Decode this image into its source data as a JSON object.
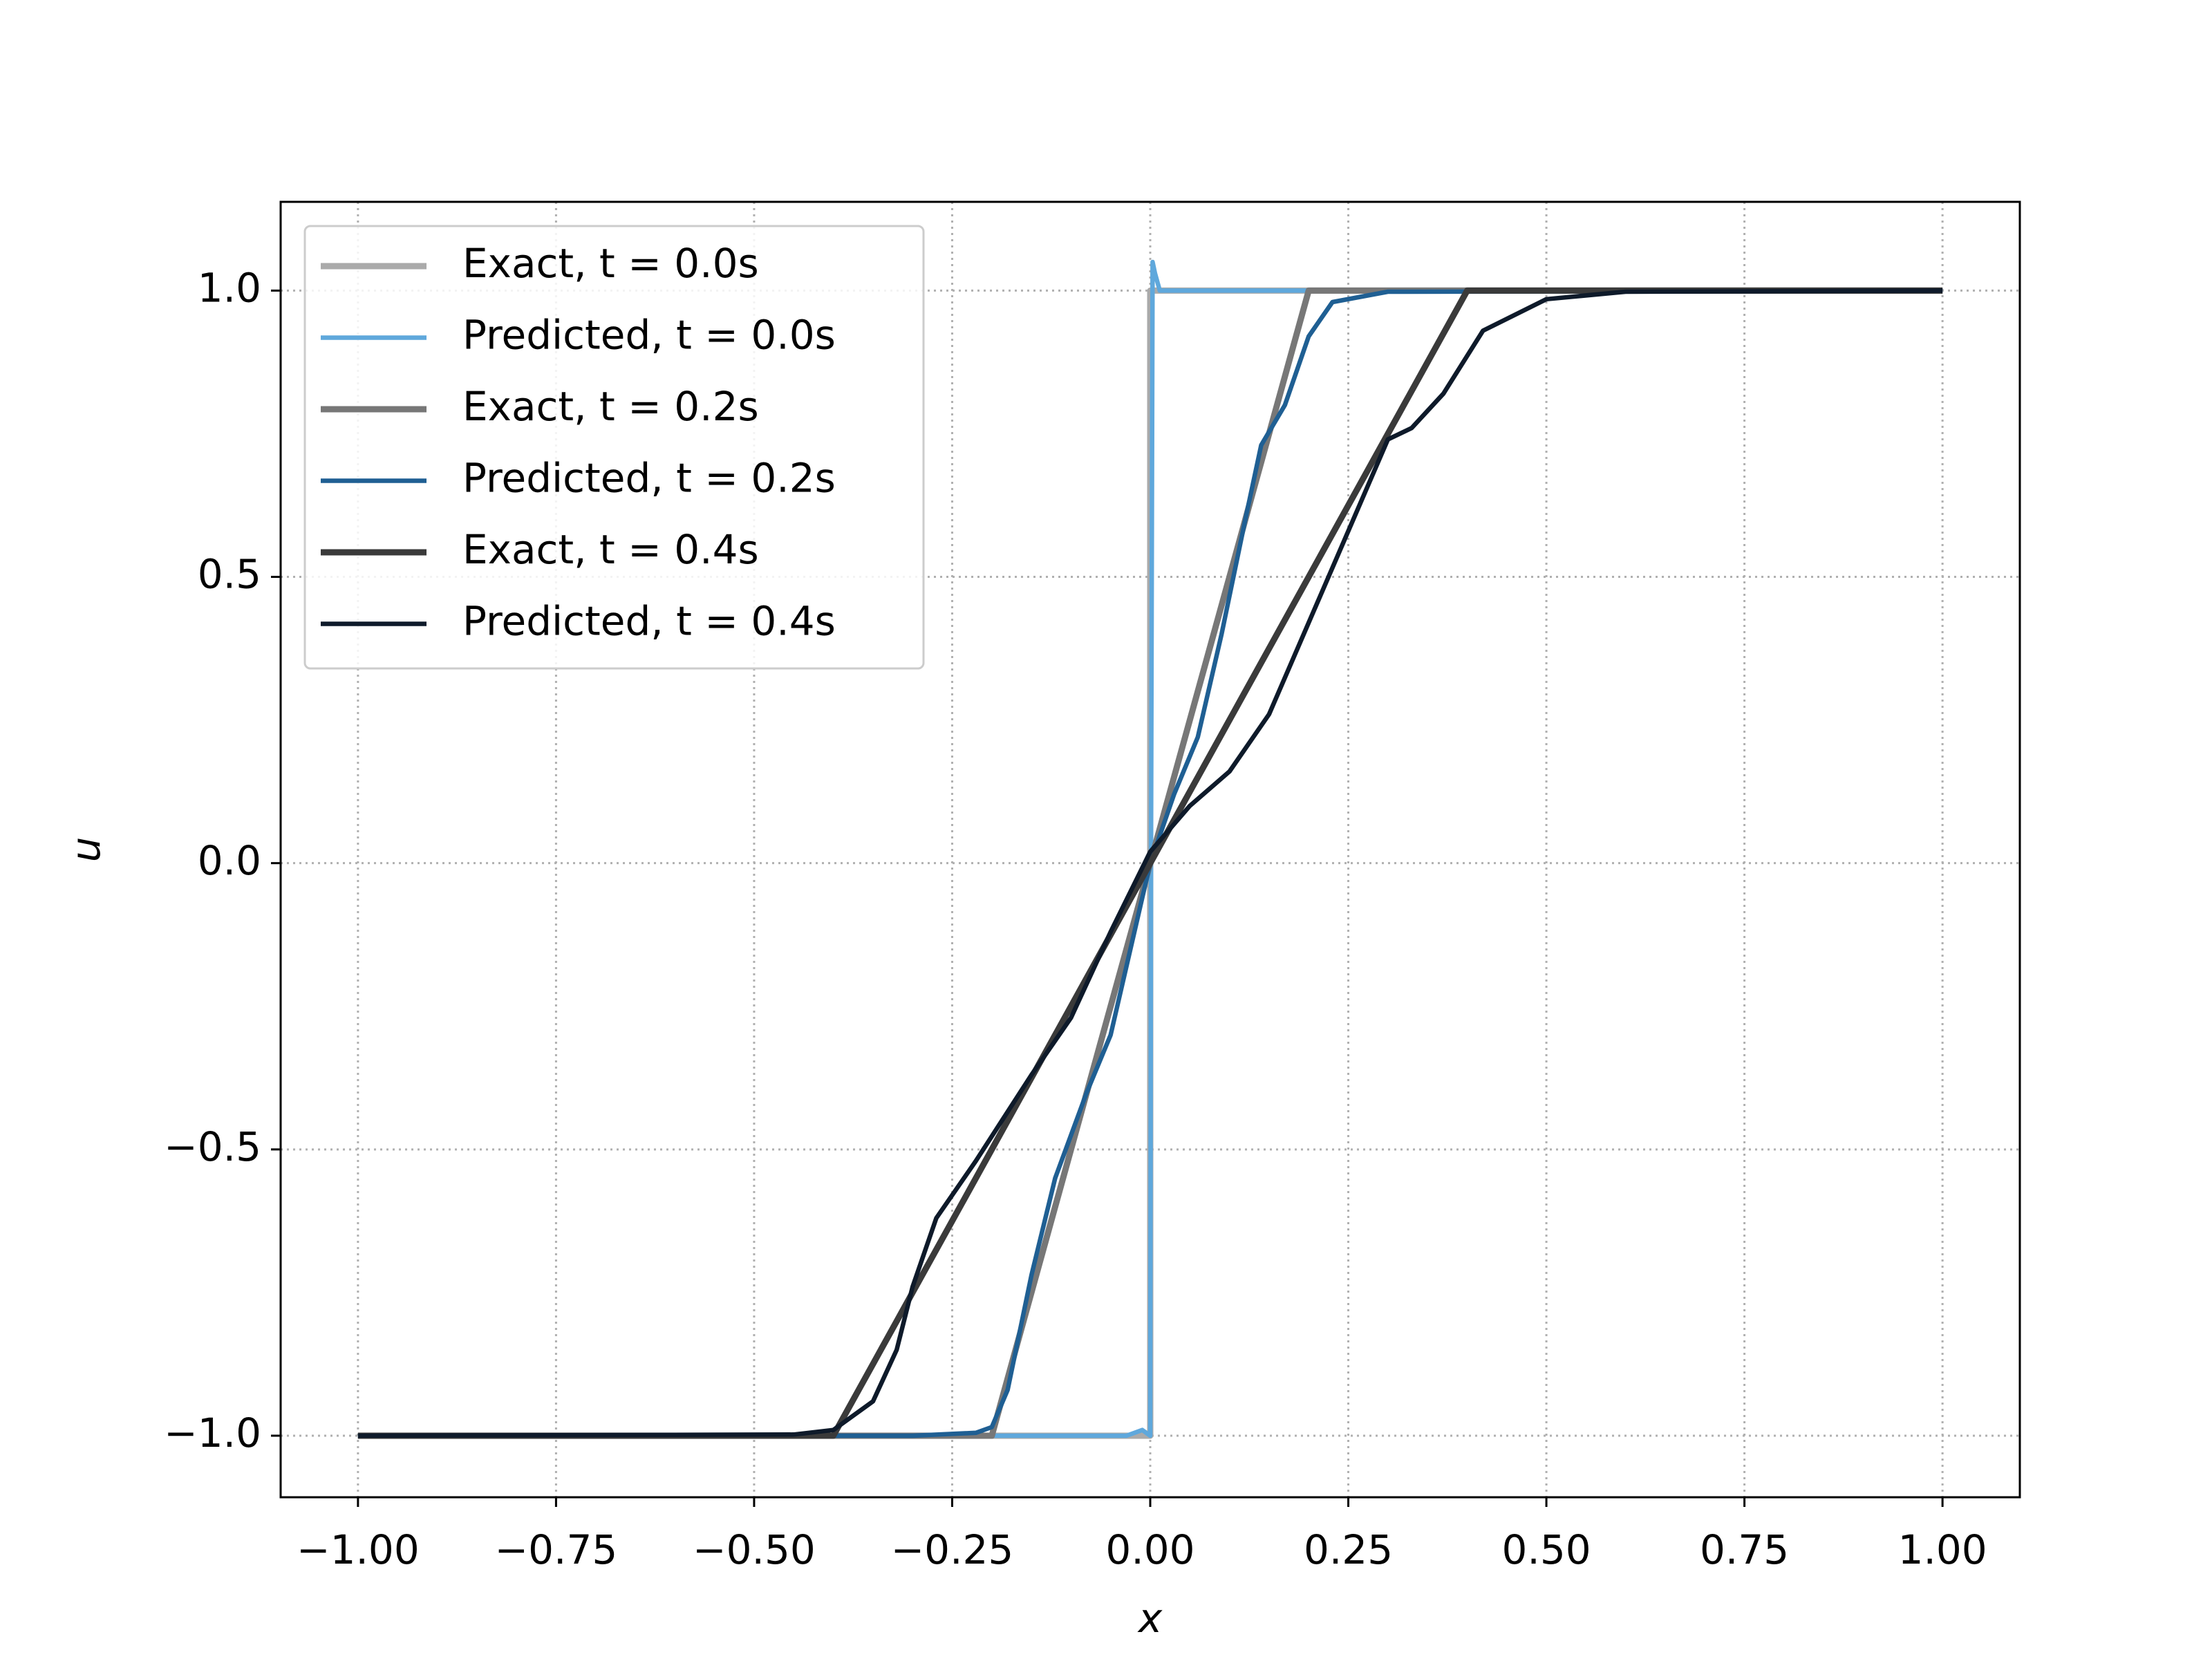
{
  "chart_data": {
    "type": "line",
    "xlabel": "x",
    "ylabel": "u",
    "xlim": [
      -1.0976,
      1.0976
    ],
    "ylim": [
      -1.1075,
      1.155
    ],
    "xticks": [
      {
        "value": -1,
        "label": "−1.00"
      },
      {
        "value": -0.75,
        "label": "−0.75"
      },
      {
        "value": -0.5,
        "label": "−0.50"
      },
      {
        "value": -0.25,
        "label": "−0.25"
      },
      {
        "value": 0,
        "label": "0.00"
      },
      {
        "value": 0.25,
        "label": "0.25"
      },
      {
        "value": 0.5,
        "label": "0.50"
      },
      {
        "value": 0.75,
        "label": "0.75"
      },
      {
        "value": 1,
        "label": "1.00"
      }
    ],
    "yticks": [
      {
        "value": -1,
        "label": "−1.0"
      },
      {
        "value": -0.5,
        "label": "−0.5"
      },
      {
        "value": 0,
        "label": "0.0"
      },
      0.5,
      {
        "value": 1,
        "label": "1.0"
      }
    ],
    "grid": true,
    "legend": "upper left",
    "series": [
      {
        "name": "Exact, t = 0.0s",
        "color": "#aaaaaa",
        "x": [
          -1,
          0,
          0,
          1
        ],
        "values": [
          -1,
          -1,
          1,
          1
        ]
      },
      {
        "name": "Predicted, t = 0.0s",
        "color": "#5fa8dc",
        "x": [
          -1,
          -0.03,
          -0.01,
          0.0,
          0.001,
          0.003,
          0.006,
          0.012,
          0.02,
          1
        ],
        "values": [
          -1,
          -1,
          -0.99,
          -1.0,
          0,
          1.05,
          1.03,
          1.0,
          1.0,
          1.0
        ]
      },
      {
        "name": "Exact, t = 0.2s",
        "color": "#777777",
        "x": [
          -1,
          -0.2,
          0.2,
          1
        ],
        "values": [
          -1,
          -1,
          1,
          1
        ]
      },
      {
        "name": "Predicted, t = 0.2s",
        "color": "#1f5f93",
        "x": [
          -1,
          -0.3,
          -0.22,
          -0.2,
          -0.18,
          -0.15,
          -0.12,
          -0.08,
          -0.05,
          -0.02,
          0,
          0.03,
          0.06,
          0.09,
          0.12,
          0.14,
          0.17,
          0.2,
          0.23,
          0.3,
          1
        ],
        "values": [
          -1,
          -1,
          -0.995,
          -0.985,
          -0.92,
          -0.72,
          -0.55,
          -0.4,
          -0.3,
          -0.12,
          0,
          0.12,
          0.22,
          0.4,
          0.6,
          0.73,
          0.8,
          0.92,
          0.98,
          0.998,
          1
        ]
      },
      {
        "name": "Exact, t = 0.4s",
        "color": "#3a3a3a",
        "x": [
          -1,
          -0.4,
          0.4,
          1
        ],
        "values": [
          -1,
          -1,
          1,
          1
        ]
      },
      {
        "name": "Predicted, t = 0.4s",
        "color": "#0e1a2a",
        "x": [
          -1,
          -0.45,
          -0.4,
          -0.35,
          -0.32,
          -0.3,
          -0.27,
          -0.22,
          -0.15,
          -0.1,
          -0.05,
          0,
          0.05,
          0.1,
          0.15,
          0.2,
          0.25,
          0.3,
          0.33,
          0.37,
          0.42,
          0.5,
          0.6,
          1
        ],
        "values": [
          -1,
          -0.998,
          -0.99,
          -0.94,
          -0.85,
          -0.74,
          -0.62,
          -0.52,
          -0.37,
          -0.27,
          -0.12,
          0.02,
          0.1,
          0.16,
          0.26,
          0.42,
          0.58,
          0.74,
          0.76,
          0.82,
          0.93,
          0.985,
          0.998,
          1
        ]
      }
    ]
  }
}
